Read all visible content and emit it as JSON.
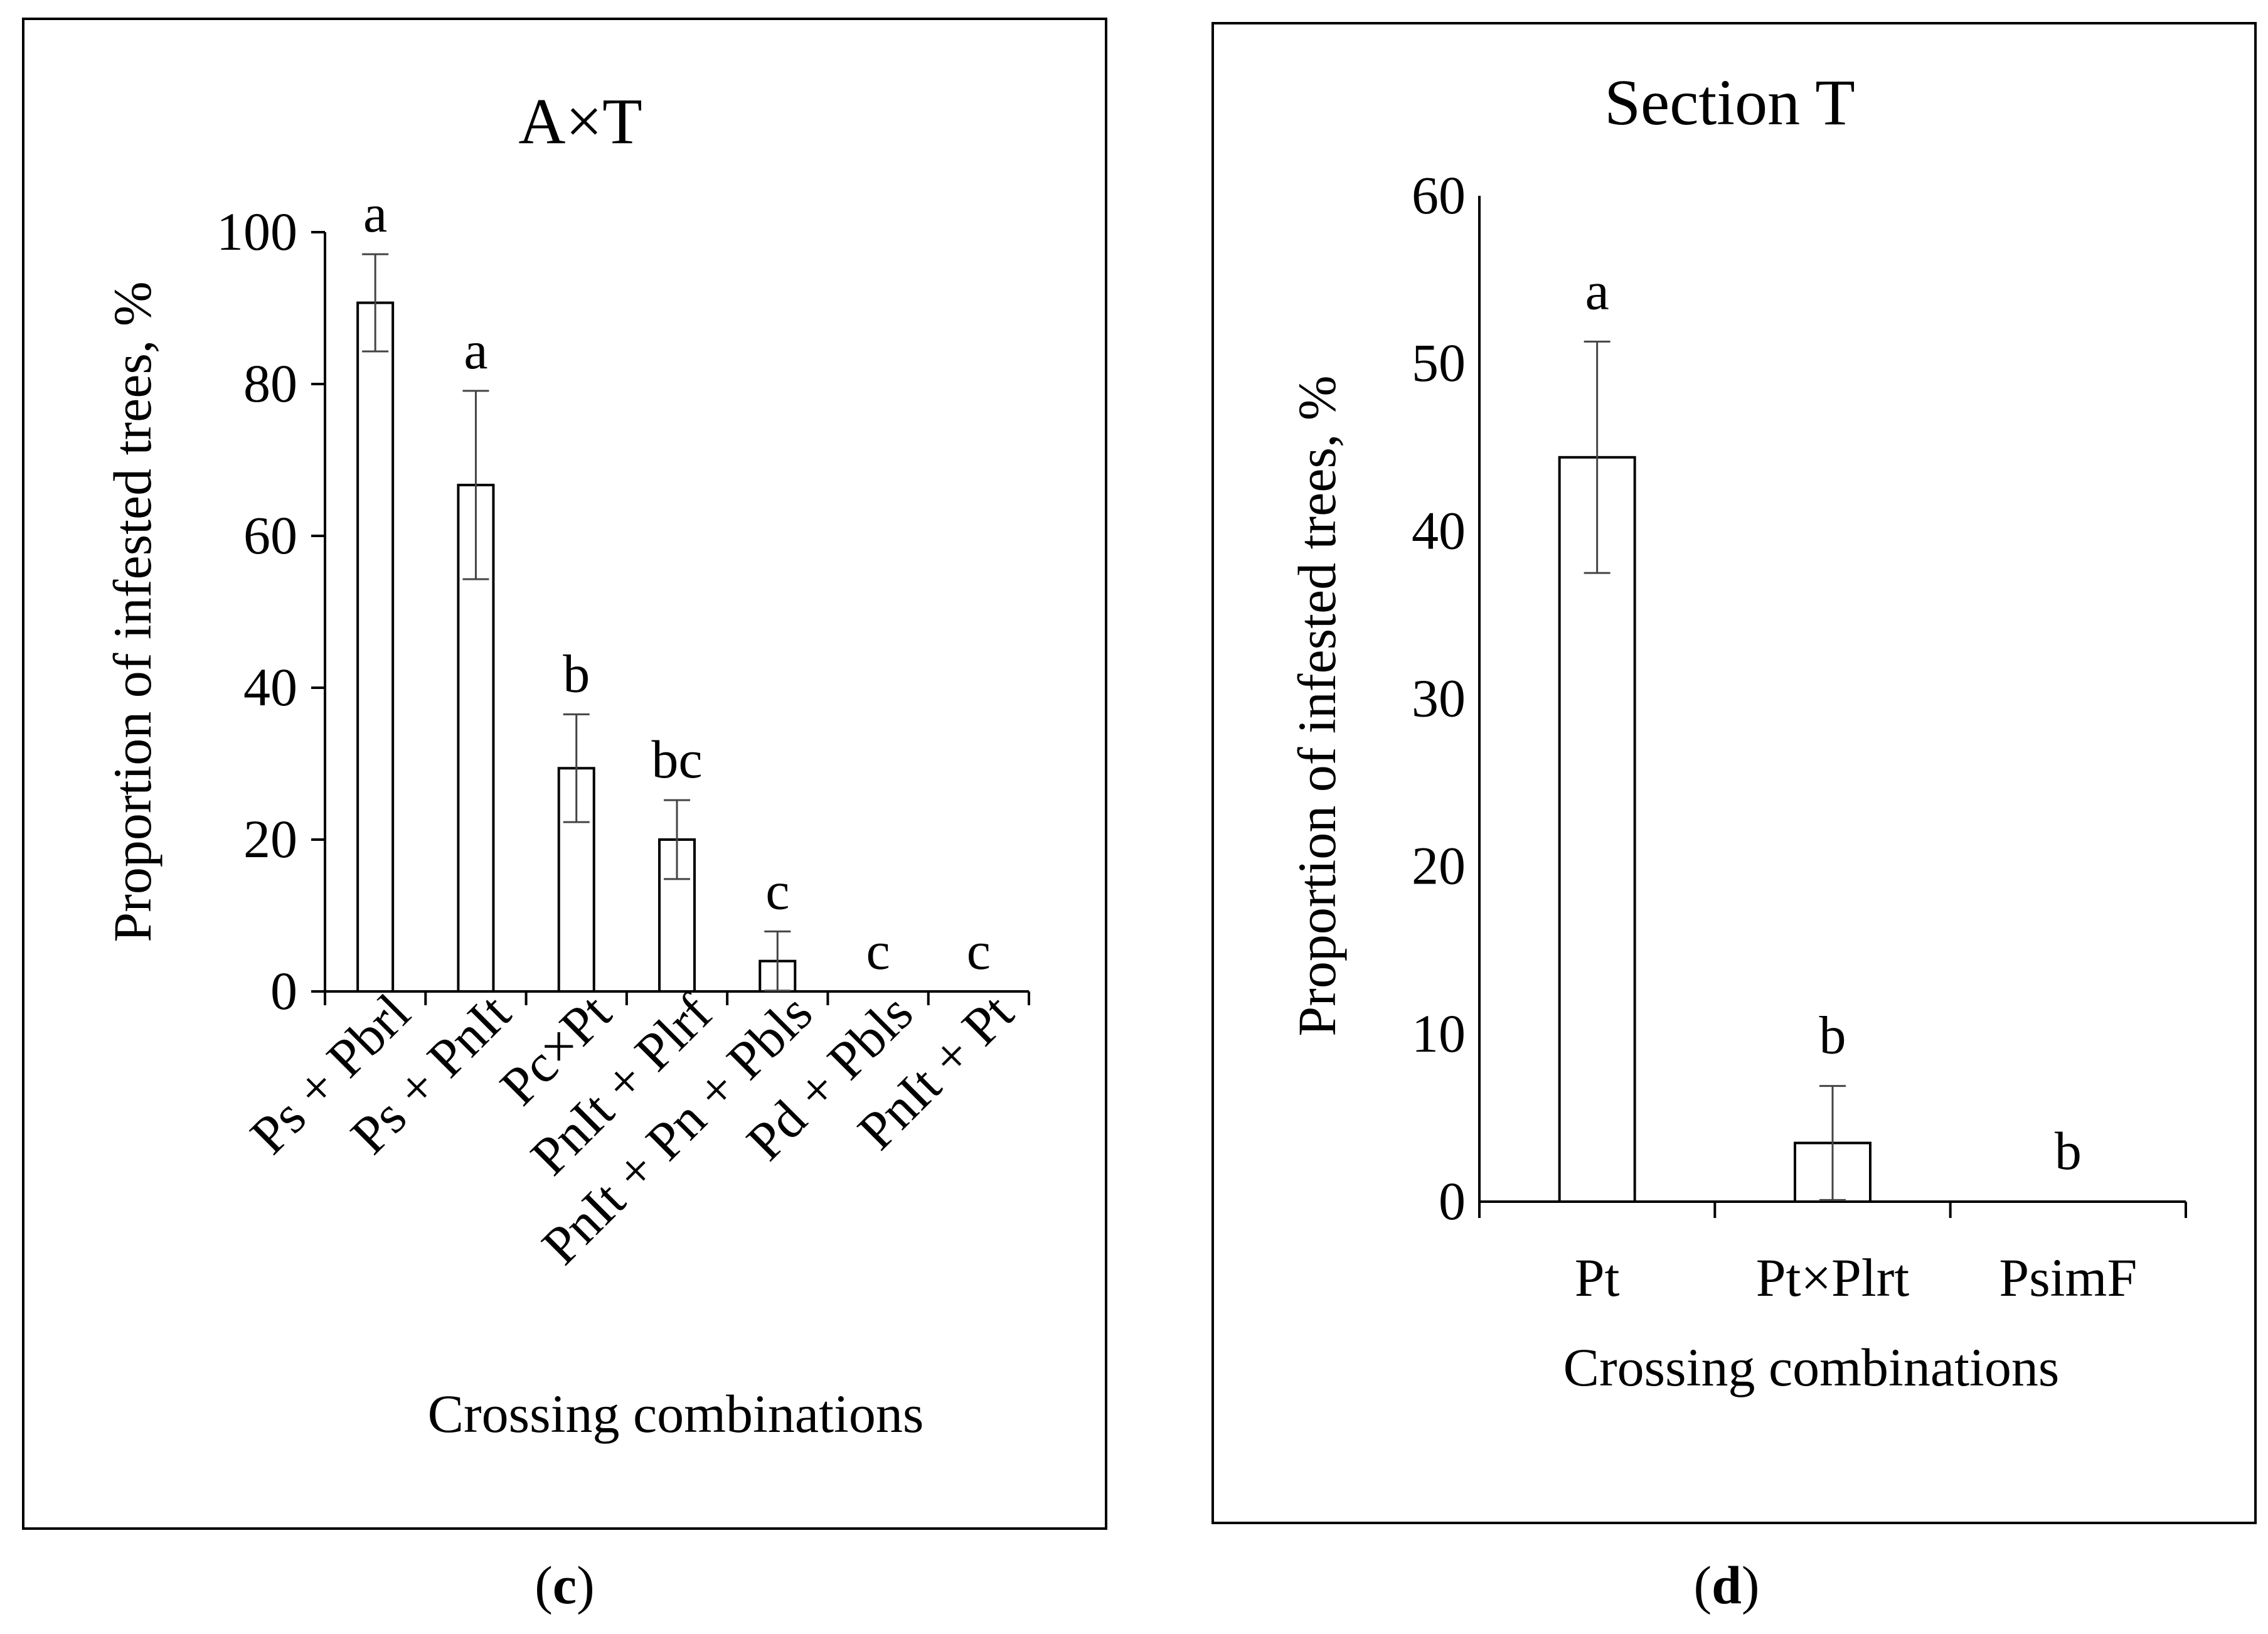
{
  "chart_data": [
    {
      "type": "bar",
      "panel_label": "c",
      "title": "A×T",
      "xlabel": "Crossing combinations",
      "ylabel": "Proportion of infested trees, %",
      "ylim": [
        0,
        100
      ],
      "yticks": [
        "0",
        "20",
        "40",
        "60",
        "80",
        "100"
      ],
      "categories": [
        "Ps + Pbrl",
        "Ps + PnIt",
        "Pc×Pt",
        "PnIt + Plrf",
        "PnIt + Pn + Pbls",
        "Pd + Pbls",
        "PnIt + Pt"
      ],
      "values": [
        90.7,
        66.7,
        29.4,
        20.0,
        4.0,
        0,
        0
      ],
      "errors": [
        6.4,
        12.4,
        7.1,
        5.2,
        3.9,
        0,
        0
      ],
      "letters": [
        "a",
        "a",
        "b",
        "bc",
        "c",
        "c",
        "c"
      ],
      "grid": false,
      "legend": "none"
    },
    {
      "type": "bar",
      "panel_label": "d",
      "title": "Section T",
      "xlabel": "Crossing combinations",
      "ylabel": "Proportion of infested trees, %",
      "ylim": [
        0,
        60
      ],
      "yticks": [
        "0",
        "10",
        "20",
        "30",
        "40",
        "50",
        "60"
      ],
      "categories": [
        "Pt",
        "Pt×Plrt",
        "PsimF"
      ],
      "values": [
        44.4,
        3.5,
        0
      ],
      "errors": [
        6.9,
        3.4,
        0
      ],
      "letters": [
        "a",
        "b",
        "b"
      ],
      "grid": false,
      "legend": "none"
    }
  ],
  "captions": {
    "c": {
      "open": "(",
      "letter": "c",
      "close": ")"
    },
    "d": {
      "open": "(",
      "letter": "d",
      "close": ")"
    }
  }
}
